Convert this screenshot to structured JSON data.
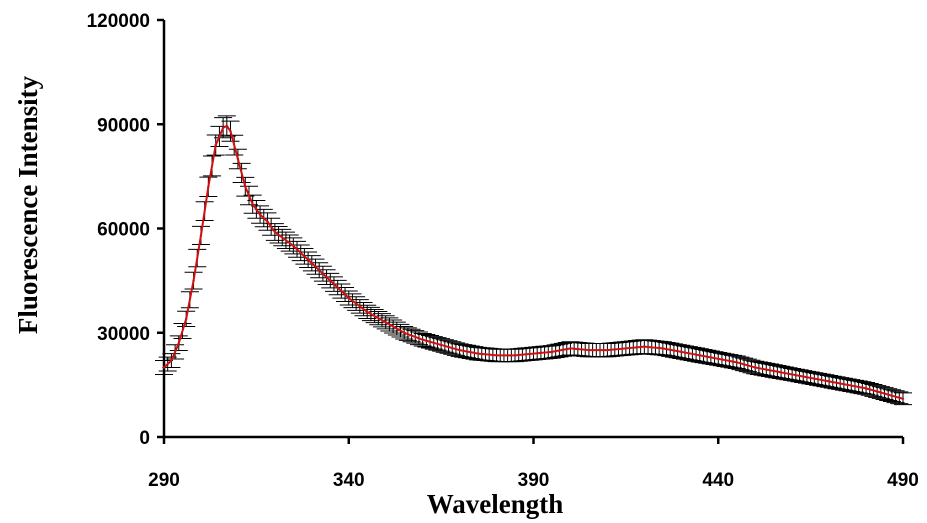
{
  "chart_data": {
    "type": "line",
    "title": "",
    "xlabel": "Wavelength",
    "ylabel": "Fluorescence Intensity",
    "xlim": [
      290,
      490
    ],
    "ylim": [
      0,
      120000
    ],
    "x_ticks": [
      290,
      340,
      390,
      440,
      490
    ],
    "y_ticks": [
      0,
      30000,
      60000,
      90000,
      120000
    ],
    "x_tick_labels": [
      "290",
      "340",
      "390",
      "440",
      "490"
    ],
    "y_tick_labels": [
      "0",
      "30000",
      "60000",
      "90000",
      "120000"
    ],
    "grid": false,
    "legend": "none",
    "series": [
      {
        "color": "#d01010",
        "error_bar_color": "#000000",
        "x": [
          290,
          292,
          294,
          296,
          298,
          300,
          302,
          304,
          306,
          307,
          308,
          310,
          312,
          314,
          316,
          318,
          320,
          325,
          330,
          335,
          340,
          345,
          350,
          355,
          360,
          365,
          370,
          375,
          380,
          385,
          390,
          395,
          400,
          405,
          410,
          415,
          420,
          425,
          430,
          435,
          440,
          445,
          450,
          455,
          460,
          465,
          470,
          475,
          480,
          485,
          490
        ],
        "y": [
          20000,
          22000,
          27000,
          34000,
          45000,
          58000,
          72000,
          84000,
          89000,
          89500,
          88000,
          80000,
          72000,
          67000,
          64000,
          62000,
          59000,
          55000,
          50000,
          45000,
          40000,
          36000,
          33000,
          30000,
          28000,
          26500,
          25000,
          24000,
          23500,
          23500,
          24000,
          24500,
          25500,
          25000,
          25000,
          25500,
          26000,
          25500,
          24500,
          23500,
          22500,
          21500,
          20000,
          19000,
          18000,
          17000,
          16000,
          15000,
          14000,
          12500,
          11000
        ],
        "error": [
          2000,
          2000,
          2100,
          2200,
          2400,
          2600,
          2800,
          2900,
          2900,
          2900,
          2900,
          2800,
          2700,
          2600,
          2500,
          2500,
          2400,
          2300,
          2200,
          2100,
          2000,
          1900,
          1900,
          1800,
          1800,
          1800,
          1800,
          1800,
          1800,
          1800,
          1800,
          1800,
          1900,
          1900,
          1900,
          1900,
          2000,
          1900,
          1900,
          1900,
          1800,
          1800,
          1800,
          1800,
          1700,
          1700,
          1700,
          1700,
          1700,
          1700,
          1700
        ]
      }
    ]
  }
}
